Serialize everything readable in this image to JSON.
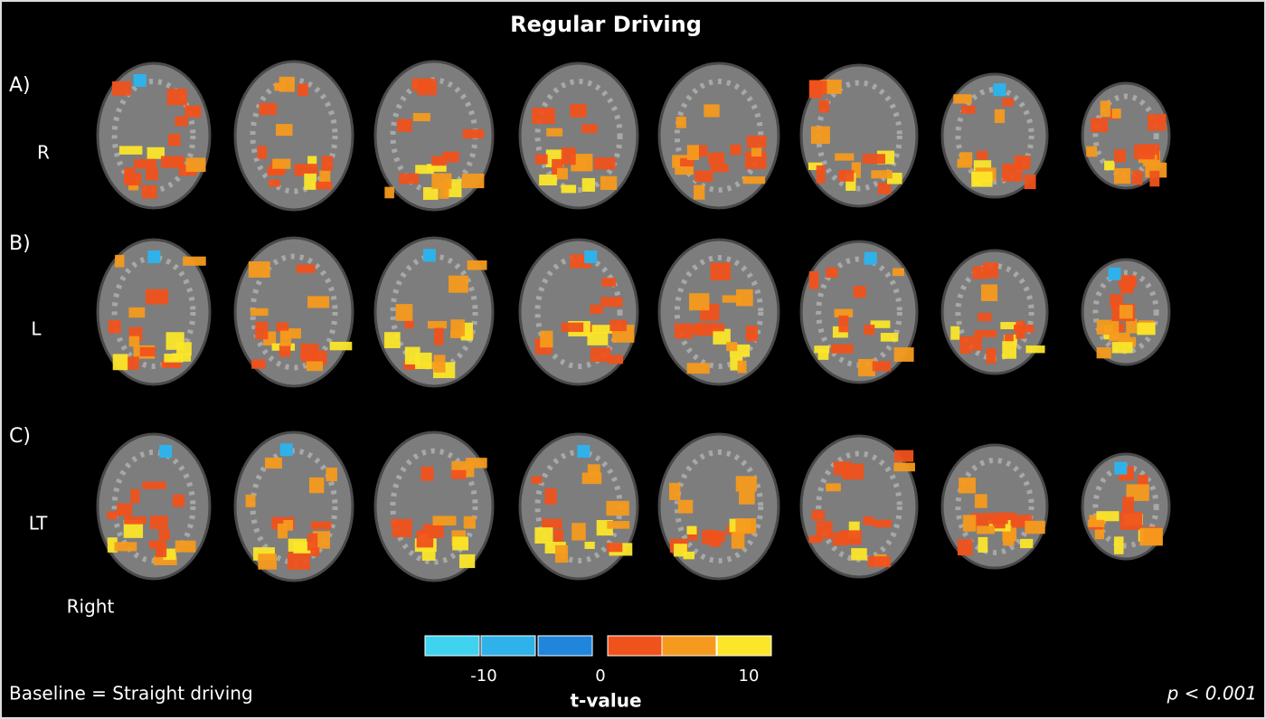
{
  "header": {
    "title": "Regular Driving"
  },
  "rows": [
    {
      "panel": "A)",
      "condition": "R"
    },
    {
      "panel": "B)",
      "condition": "L"
    },
    {
      "panel": "C)",
      "condition": "LT"
    }
  ],
  "orientation_label": "Right",
  "colorbar": {
    "ticks": [
      -10,
      0,
      10
    ],
    "label": "t-value",
    "colors": [
      "#3fd3f0",
      "#2fb2ea",
      "#1f86dc",
      "#f0521c",
      "#f59a1e",
      "#fbe62a"
    ]
  },
  "footer": {
    "baseline": "Baseline = Straight driving",
    "threshold": "p < 0.001"
  }
}
